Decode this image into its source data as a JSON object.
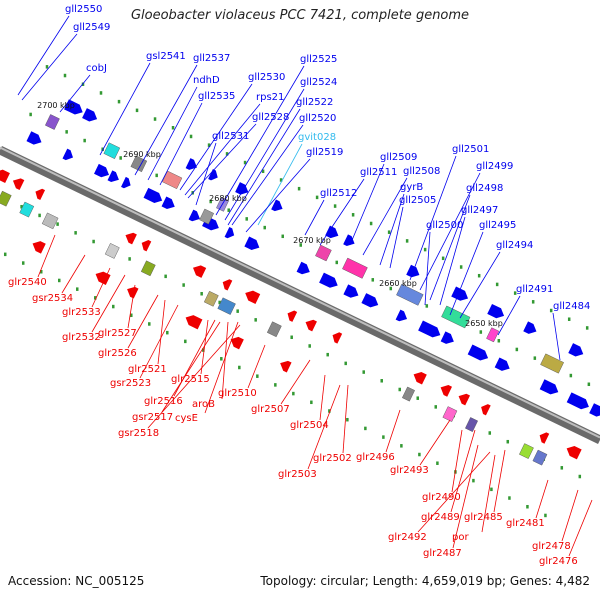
{
  "title": "Gloeobacter violaceus PCC 7421, complete genome",
  "footer": {
    "accession": "Accession: NC_005125",
    "summary": "Topology: circular; Length: 4,659,019 bp; Genes: 4,482"
  },
  "colors": {
    "forward": "#0000ee",
    "reverse": "#ee0000",
    "rna": "#33bbee",
    "axis": "#777777",
    "tick": "#339933"
  },
  "kbp_marks": [
    "2700 kbp",
    "2690 kbp",
    "2680 kbp",
    "2670 kbp",
    "2660 kbp",
    "2650 kbp"
  ],
  "top_labels": [
    {
      "text": "gll2550",
      "color": "blue"
    },
    {
      "text": "gll2549",
      "color": "blue"
    },
    {
      "text": "cobJ",
      "color": "blue"
    },
    {
      "text": "gsl2541",
      "color": "blue"
    },
    {
      "text": "gll2537",
      "color": "blue"
    },
    {
      "text": "ndhD",
      "color": "blue"
    },
    {
      "text": "gll2535",
      "color": "blue"
    },
    {
      "text": "gll2530",
      "color": "blue"
    },
    {
      "text": "rps21",
      "color": "blue"
    },
    {
      "text": "gll2528",
      "color": "blue"
    },
    {
      "text": "gll2531",
      "color": "blue"
    },
    {
      "text": "gll2525",
      "color": "blue"
    },
    {
      "text": "gll2524",
      "color": "blue"
    },
    {
      "text": "gll2522",
      "color": "blue"
    },
    {
      "text": "gll2520",
      "color": "blue"
    },
    {
      "text": "gvit028",
      "color": "cyan"
    },
    {
      "text": "gll2519",
      "color": "blue"
    },
    {
      "text": "gll2512",
      "color": "blue"
    },
    {
      "text": "gll2511",
      "color": "blue"
    },
    {
      "text": "gll2509",
      "color": "blue"
    },
    {
      "text": "gll2508",
      "color": "blue"
    },
    {
      "text": "gyrB",
      "color": "blue"
    },
    {
      "text": "gll2505",
      "color": "blue"
    },
    {
      "text": "gll2501",
      "color": "blue"
    },
    {
      "text": "gll2499",
      "color": "blue"
    },
    {
      "text": "gll2498",
      "color": "blue"
    },
    {
      "text": "gll2497",
      "color": "blue"
    },
    {
      "text": "gll2500",
      "color": "blue"
    },
    {
      "text": "gll2495",
      "color": "blue"
    },
    {
      "text": "gll2494",
      "color": "blue"
    },
    {
      "text": "gll2491",
      "color": "blue"
    },
    {
      "text": "gll2484",
      "color": "blue"
    }
  ],
  "bottom_labels": [
    {
      "text": "glr2540"
    },
    {
      "text": "gsr2534"
    },
    {
      "text": "glr2533"
    },
    {
      "text": "glr2532"
    },
    {
      "text": "glr2527"
    },
    {
      "text": "glr2526"
    },
    {
      "text": "glr2521"
    },
    {
      "text": "gsr2523"
    },
    {
      "text": "glr2515"
    },
    {
      "text": "glr2516"
    },
    {
      "text": "aroB"
    },
    {
      "text": "gsr2517"
    },
    {
      "text": "cysE"
    },
    {
      "text": "gsr2518"
    },
    {
      "text": "glr2510"
    },
    {
      "text": "glr2507"
    },
    {
      "text": "glr2504"
    },
    {
      "text": "glr2503"
    },
    {
      "text": "glr2502"
    },
    {
      "text": "glr2496"
    },
    {
      "text": "glr2493"
    },
    {
      "text": "glr2490"
    },
    {
      "text": "glr2489"
    },
    {
      "text": "glr2492"
    },
    {
      "text": "por"
    },
    {
      "text": "glr2487"
    },
    {
      "text": "glr2485"
    },
    {
      "text": "glr2481"
    },
    {
      "text": "glr2478"
    },
    {
      "text": "glr2476"
    }
  ]
}
